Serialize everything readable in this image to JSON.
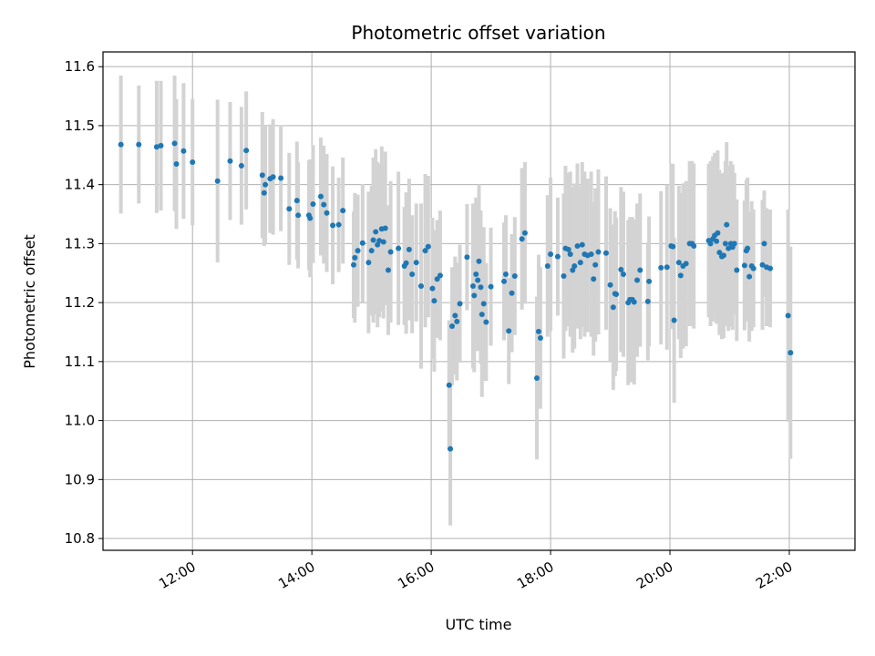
{
  "chart_data": {
    "type": "scatter",
    "title": "Photometric offset variation",
    "xlabel": "UTC time",
    "ylabel": "Photometric offset",
    "x_tick_labels": [
      "12:00",
      "14:00",
      "16:00",
      "18:00",
      "20:00",
      "22:00"
    ],
    "x_ticks_hours": [
      12,
      14,
      16,
      18,
      20,
      22
    ],
    "y_ticks": [
      10.8,
      10.9,
      11.0,
      11.1,
      11.2,
      11.3,
      11.4,
      11.5,
      11.6
    ],
    "xlim_hours": [
      10.5,
      23.1
    ],
    "ylim": [
      10.78,
      11.625
    ],
    "grid": true,
    "errorbar_color": "#d3d3d3",
    "marker_color": "#1f77b4",
    "points": [
      [
        10.8,
        11.468,
        0.117
      ],
      [
        11.1,
        11.468,
        0.1
      ],
      [
        11.4,
        11.464,
        0.112
      ],
      [
        11.47,
        11.466,
        0.11
      ],
      [
        11.7,
        11.47,
        0.115
      ],
      [
        11.73,
        11.435,
        0.11
      ],
      [
        11.85,
        11.457,
        0.115
      ],
      [
        12.0,
        11.438,
        0.107
      ],
      [
        12.42,
        11.406,
        0.138
      ],
      [
        12.63,
        11.44,
        0.1
      ],
      [
        12.82,
        11.432,
        0.1
      ],
      [
        12.9,
        11.458,
        0.1
      ],
      [
        13.17,
        11.416,
        0.107
      ],
      [
        13.2,
        11.386,
        0.09
      ],
      [
        13.22,
        11.4,
        0.1
      ],
      [
        13.3,
        11.41,
        0.092
      ],
      [
        13.35,
        11.413,
        0.098
      ],
      [
        13.48,
        11.411,
        0.09
      ],
      [
        13.62,
        11.359,
        0.095
      ],
      [
        13.75,
        11.373,
        0.1
      ],
      [
        13.77,
        11.348,
        0.09
      ],
      [
        13.95,
        11.348,
        0.093
      ],
      [
        13.97,
        11.343,
        0.1
      ],
      [
        14.02,
        11.367,
        0.1
      ],
      [
        14.15,
        11.38,
        0.1
      ],
      [
        14.2,
        11.366,
        0.1
      ],
      [
        14.25,
        11.352,
        0.1
      ],
      [
        14.35,
        11.331,
        0.1
      ],
      [
        14.45,
        11.332,
        0.08
      ],
      [
        14.52,
        11.356,
        0.09
      ],
      [
        14.7,
        11.264,
        0.09
      ],
      [
        14.72,
        11.276,
        0.11
      ],
      [
        14.77,
        11.288,
        0.095
      ],
      [
        14.85,
        11.301,
        0.1
      ],
      [
        14.95,
        11.268,
        0.12
      ],
      [
        15.0,
        11.288,
        0.11
      ],
      [
        15.03,
        11.306,
        0.14
      ],
      [
        15.07,
        11.32,
        0.14
      ],
      [
        15.1,
        11.298,
        0.14
      ],
      [
        15.13,
        11.305,
        0.13
      ],
      [
        15.17,
        11.325,
        0.14
      ],
      [
        15.2,
        11.303,
        0.13
      ],
      [
        15.23,
        11.326,
        0.13
      ],
      [
        15.28,
        11.255,
        0.11
      ],
      [
        15.32,
        11.286,
        0.12
      ],
      [
        15.45,
        11.292,
        0.13
      ],
      [
        15.55,
        11.262,
        0.1
      ],
      [
        15.58,
        11.267,
        0.12
      ],
      [
        15.63,
        11.29,
        0.12
      ],
      [
        15.68,
        11.248,
        0.1
      ],
      [
        15.75,
        11.268,
        0.1
      ],
      [
        15.83,
        11.228,
        0.14
      ],
      [
        15.9,
        11.288,
        0.13
      ],
      [
        15.95,
        11.295,
        0.12
      ],
      [
        16.02,
        11.224,
        0.12
      ],
      [
        16.05,
        11.203,
        0.12
      ],
      [
        16.1,
        11.24,
        0.1
      ],
      [
        16.15,
        11.246,
        0.11
      ],
      [
        16.3,
        11.06,
        0.11
      ],
      [
        16.32,
        10.952,
        0.13
      ],
      [
        16.35,
        11.16,
        0.1
      ],
      [
        16.4,
        11.178,
        0.1
      ],
      [
        16.43,
        11.168,
        0.1
      ],
      [
        16.48,
        11.198,
        0.1
      ],
      [
        16.6,
        11.277,
        0.09
      ],
      [
        16.7,
        11.228,
        0.14
      ],
      [
        16.72,
        11.212,
        0.13
      ],
      [
        16.75,
        11.248,
        0.13
      ],
      [
        16.78,
        11.238,
        0.12
      ],
      [
        16.8,
        11.27,
        0.13
      ],
      [
        16.83,
        11.226,
        0.13
      ],
      [
        16.85,
        11.18,
        0.14
      ],
      [
        16.88,
        11.198,
        0.13
      ],
      [
        16.92,
        11.167,
        0.1
      ],
      [
        17.0,
        11.227,
        0.1
      ],
      [
        17.22,
        11.236,
        0.1
      ],
      [
        17.25,
        11.248,
        0.1
      ],
      [
        17.3,
        11.152,
        0.09
      ],
      [
        17.35,
        11.216,
        0.1
      ],
      [
        17.4,
        11.245,
        0.1
      ],
      [
        17.52,
        11.308,
        0.12
      ],
      [
        17.57,
        11.318,
        0.12
      ],
      [
        17.77,
        11.072,
        0.138
      ],
      [
        17.8,
        11.151,
        0.13
      ],
      [
        17.83,
        11.14,
        0.12
      ],
      [
        17.95,
        11.262,
        0.12
      ],
      [
        18.0,
        11.282,
        0.13
      ],
      [
        18.12,
        11.278,
        0.1
      ],
      [
        18.22,
        11.245,
        0.14
      ],
      [
        18.25,
        11.292,
        0.14
      ],
      [
        18.3,
        11.29,
        0.13
      ],
      [
        18.33,
        11.282,
        0.14
      ],
      [
        18.37,
        11.255,
        0.14
      ],
      [
        18.4,
        11.262,
        0.14
      ],
      [
        18.45,
        11.296,
        0.14
      ],
      [
        18.5,
        11.268,
        0.13
      ],
      [
        18.53,
        11.298,
        0.14
      ],
      [
        18.57,
        11.282,
        0.14
      ],
      [
        18.62,
        11.28,
        0.13
      ],
      [
        18.68,
        11.282,
        0.14
      ],
      [
        18.72,
        11.24,
        0.13
      ],
      [
        18.75,
        11.264,
        0.13
      ],
      [
        18.8,
        11.286,
        0.14
      ],
      [
        18.93,
        11.284,
        0.13
      ],
      [
        19.0,
        11.23,
        0.13
      ],
      [
        19.05,
        11.192,
        0.14
      ],
      [
        19.08,
        11.215,
        0.14
      ],
      [
        19.1,
        11.214,
        0.13
      ],
      [
        19.18,
        11.256,
        0.14
      ],
      [
        19.22,
        11.248,
        0.14
      ],
      [
        19.3,
        11.2,
        0.14
      ],
      [
        19.33,
        11.205,
        0.14
      ],
      [
        19.37,
        11.205,
        0.14
      ],
      [
        19.4,
        11.201,
        0.14
      ],
      [
        19.45,
        11.238,
        0.13
      ],
      [
        19.5,
        11.255,
        0.13
      ],
      [
        19.63,
        11.202,
        0.1
      ],
      [
        19.65,
        11.236,
        0.11
      ],
      [
        19.85,
        11.259,
        0.13
      ],
      [
        19.95,
        11.26,
        0.14
      ],
      [
        20.02,
        11.296,
        0.14
      ],
      [
        20.05,
        11.295,
        0.14
      ],
      [
        20.07,
        11.17,
        0.14
      ],
      [
        20.15,
        11.268,
        0.13
      ],
      [
        20.18,
        11.246,
        0.14
      ],
      [
        20.22,
        11.262,
        0.14
      ],
      [
        20.27,
        11.266,
        0.14
      ],
      [
        20.33,
        11.3,
        0.14
      ],
      [
        20.37,
        11.3,
        0.14
      ],
      [
        20.4,
        11.296,
        0.14
      ],
      [
        20.65,
        11.305,
        0.13
      ],
      [
        20.68,
        11.3,
        0.14
      ],
      [
        20.72,
        11.308,
        0.14
      ],
      [
        20.75,
        11.314,
        0.14
      ],
      [
        20.78,
        11.304,
        0.14
      ],
      [
        20.8,
        11.318,
        0.14
      ],
      [
        20.83,
        11.285,
        0.14
      ],
      [
        20.87,
        11.278,
        0.14
      ],
      [
        20.9,
        11.28,
        0.14
      ],
      [
        20.93,
        11.3,
        0.14
      ],
      [
        20.95,
        11.332,
        0.14
      ],
      [
        20.98,
        11.292,
        0.14
      ],
      [
        21.02,
        11.3,
        0.14
      ],
      [
        21.05,
        11.294,
        0.14
      ],
      [
        21.08,
        11.3,
        0.12
      ],
      [
        21.12,
        11.255,
        0.12
      ],
      [
        21.25,
        11.263,
        0.11
      ],
      [
        21.28,
        11.288,
        0.12
      ],
      [
        21.3,
        11.292,
        0.12
      ],
      [
        21.33,
        11.244,
        0.11
      ],
      [
        21.37,
        11.262,
        0.11
      ],
      [
        21.4,
        11.258,
        0.1
      ],
      [
        21.55,
        11.264,
        0.11
      ],
      [
        21.58,
        11.3,
        0.09
      ],
      [
        21.62,
        11.26,
        0.1
      ],
      [
        21.68,
        11.258,
        0.1
      ],
      [
        21.98,
        11.178,
        0.18
      ],
      [
        22.02,
        11.115,
        0.18
      ]
    ]
  }
}
